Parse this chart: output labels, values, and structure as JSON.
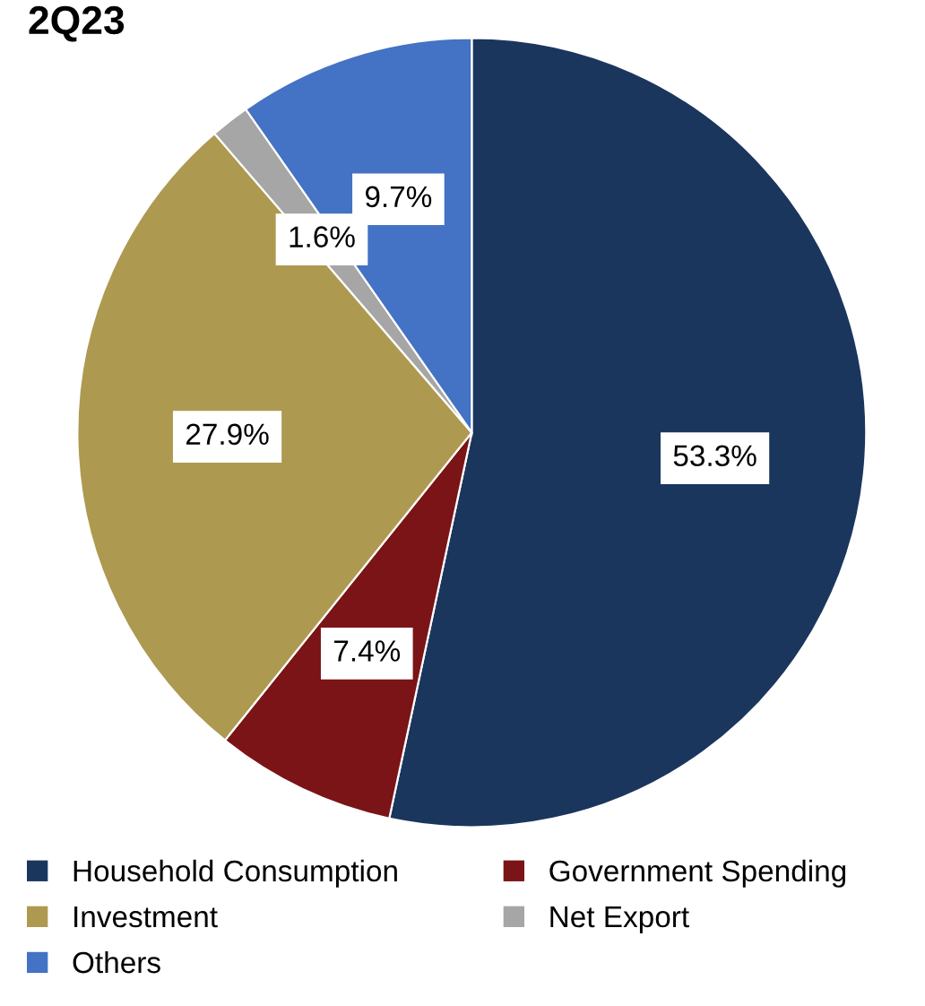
{
  "chart_data": {
    "type": "pie",
    "title": "2Q23",
    "categories": [
      "Household Consumption",
      "Government Spending",
      "Investment",
      "Net Export",
      "Others"
    ],
    "values": [
      53.3,
      7.4,
      27.9,
      1.6,
      9.7
    ],
    "colors": [
      "#1b365d",
      "#7b1416",
      "#ad9a50",
      "#a6a6a6",
      "#4472c4"
    ],
    "value_labels": [
      "53.3%",
      "7.4%",
      "27.9%",
      "1.6%",
      "9.7%"
    ],
    "legend": "bottom"
  }
}
